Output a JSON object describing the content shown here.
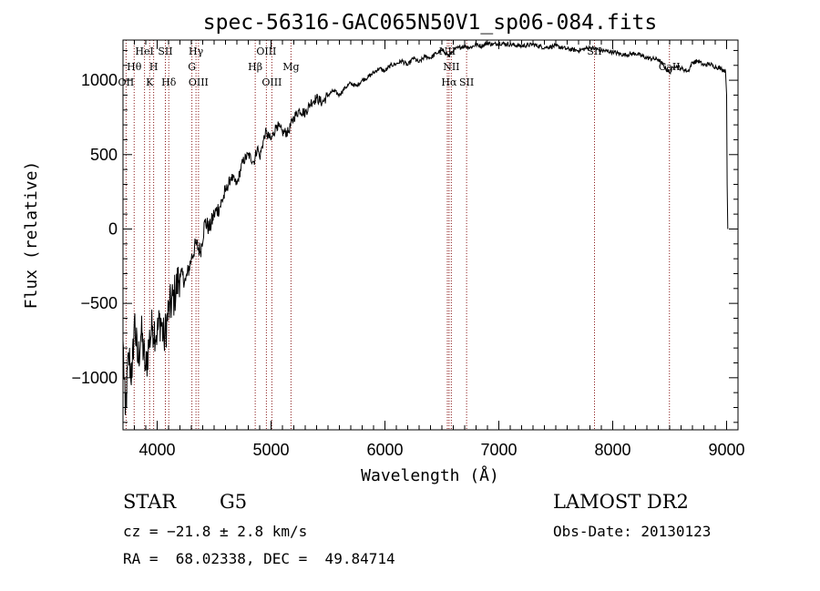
{
  "chart_data": {
    "type": "line",
    "title": "spec-56316-GAC065N50V1_sp06-084.fits",
    "xlabel": "Wavelength (Å)",
    "ylabel": "Flux (relative)",
    "xlim": [
      3700,
      9100
    ],
    "ylim": [
      -1350,
      1270
    ],
    "x_ticks": [
      4000,
      5000,
      6000,
      7000,
      8000,
      9000
    ],
    "y_ticks": [
      -1000,
      -500,
      0,
      500,
      1000
    ],
    "x_tick_labels": [
      "4000",
      "5000",
      "6000",
      "7000",
      "8000",
      "9000"
    ],
    "y_tick_labels": [
      "−1000",
      "−500",
      "0",
      "500",
      "1000"
    ],
    "grid": false,
    "legend": "none",
    "series": [
      {
        "line_color": "#000000",
        "x": [
          3700,
          3720,
          3750,
          3780,
          3800,
          3830,
          3860,
          3900,
          3930,
          3960,
          4000,
          4030,
          4060,
          4100,
          4150,
          4200,
          4250,
          4300,
          4340,
          4380,
          4420,
          4460,
          4500,
          4550,
          4600,
          4650,
          4700,
          4750,
          4800,
          4850,
          4880,
          4900,
          4950,
          5000,
          5050,
          5100,
          5150,
          5200,
          5250,
          5300,
          5350,
          5400,
          5450,
          5500,
          5550,
          5600,
          5650,
          5700,
          5750,
          5800,
          5850,
          5900,
          5950,
          6000,
          6050,
          6100,
          6150,
          6200,
          6250,
          6300,
          6350,
          6400,
          6450,
          6500,
          6540,
          6563,
          6600,
          6650,
          6700,
          6750,
          6800,
          6850,
          6900,
          6950,
          7000,
          7100,
          7200,
          7300,
          7400,
          7500,
          7600,
          7700,
          7800,
          7900,
          8000,
          8100,
          8200,
          8300,
          8400,
          8498,
          8542,
          8600,
          8662,
          8700,
          8750,
          8800,
          8850,
          8900,
          8950,
          8990,
          9000,
          9005,
          9010
        ],
        "y": [
          -750,
          -1250,
          -850,
          -1000,
          -600,
          -900,
          -700,
          -950,
          -750,
          -650,
          -700,
          -600,
          -750,
          -550,
          -450,
          -300,
          -350,
          -200,
          -100,
          -150,
          50,
          0,
          100,
          150,
          250,
          350,
          300,
          450,
          500,
          450,
          550,
          480,
          650,
          600,
          700,
          650,
          650,
          750,
          800,
          780,
          850,
          880,
          850,
          900,
          930,
          900,
          950,
          980,
          960,
          1000,
          1020,
          1050,
          1080,
          1060,
          1100,
          1110,
          1130,
          1100,
          1150,
          1120,
          1160,
          1150,
          1180,
          1200,
          1180,
          1160,
          1200,
          1220,
          1230,
          1220,
          1240,
          1230,
          1250,
          1240,
          1250,
          1240,
          1230,
          1240,
          1220,
          1230,
          1210,
          1200,
          1220,
          1200,
          1190,
          1170,
          1180,
          1150,
          1140,
          1050,
          1100,
          1080,
          1060,
          1120,
          1130,
          1100,
          1110,
          1090,
          1080,
          1060,
          900,
          300,
          0
        ]
      }
    ],
    "reference_lines": [
      {
        "name": "OII",
        "wavelength": 3727,
        "label_row": 3
      },
      {
        "name": "Hθ",
        "wavelength": 3798,
        "label_row": 2
      },
      {
        "name": "HeI",
        "wavelength": 3889,
        "label_row": 1
      },
      {
        "name": "K",
        "wavelength": 3934,
        "label_row": 3
      },
      {
        "name": "H",
        "wavelength": 3969,
        "label_row": 2
      },
      {
        "name": "SII",
        "wavelength": 4072,
        "label_row": 1
      },
      {
        "name": "Hδ",
        "wavelength": 4102,
        "label_row": 3
      },
      {
        "name": "G",
        "wavelength": 4305,
        "label_row": 2
      },
      {
        "name": "Hγ",
        "wavelength": 4341,
        "label_row": 1
      },
      {
        "name": "OIII",
        "wavelength": 4363,
        "label_row": 3
      },
      {
        "name": "Hβ",
        "wavelength": 4861,
        "label_row": 2
      },
      {
        "name": "OIII",
        "wavelength": 4959,
        "label_row": 1
      },
      {
        "name": "OIII",
        "wavelength": 5007,
        "label_row": 3
      },
      {
        "name": "Mg",
        "wavelength": 5175,
        "label_row": 2
      },
      {
        "name": "NII",
        "wavelength": 6548,
        "label_row": 1
      },
      {
        "name": "Hα",
        "wavelength": 6563,
        "label_row": 3
      },
      {
        "name": "NII",
        "wavelength": 6583,
        "label_row": 2
      },
      {
        "name": "SII",
        "wavelength": 6717,
        "label_row": 3
      },
      {
        "name": "SII",
        "wavelength": 7840,
        "label_row": 1
      },
      {
        "name": "CaII",
        "wavelength": 8498,
        "label_row": 2
      }
    ]
  },
  "info": {
    "object_class": "STAR",
    "subclass": "G5",
    "survey": "LAMOST DR2",
    "redshift": "cz = −21.8 ± 2.8 km/s",
    "obs_date": "Obs-Date: 20130123",
    "coordinates": "RA =  68.02338, DEC =  49.84714"
  },
  "colors": {
    "reference_line": "#8b1a1a",
    "spectrum": "#000000"
  }
}
